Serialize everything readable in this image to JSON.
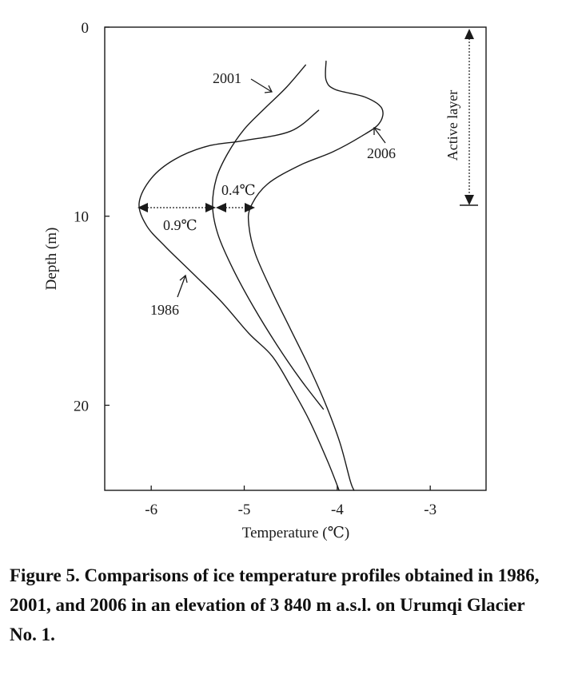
{
  "chart_data": {
    "type": "line",
    "title": "",
    "xlabel": "Temperature (℃)",
    "ylabel": "Depth (m)",
    "xlim": [
      -6.5,
      -2.4
    ],
    "ylim": [
      0,
      24.5
    ],
    "y_inverted": true,
    "x_ticks": [
      -6,
      -5,
      -4,
      -3
    ],
    "x_tick_labels": [
      "-6",
      "-5",
      "-4",
      "-3"
    ],
    "y_ticks": [
      0,
      10,
      20
    ],
    "y_tick_labels": [
      "0",
      "10",
      "20"
    ],
    "grid": false,
    "legend": "none",
    "series": [
      {
        "name": "1986",
        "points": [
          [
            -4.2,
            4.4
          ],
          [
            -4.5,
            5.5
          ],
          [
            -5.0,
            6.0
          ],
          [
            -5.4,
            6.3
          ],
          [
            -5.75,
            7.0
          ],
          [
            -6.0,
            8.0
          ],
          [
            -6.13,
            9.3
          ],
          [
            -6.05,
            10.5
          ],
          [
            -5.85,
            11.6
          ],
          [
            -5.6,
            12.8
          ],
          [
            -5.25,
            14.5
          ],
          [
            -4.95,
            16.2
          ],
          [
            -4.7,
            17.4
          ],
          [
            -4.5,
            19.0
          ],
          [
            -4.3,
            20.8
          ],
          [
            -4.1,
            23.0
          ],
          [
            -3.98,
            24.5
          ]
        ]
      },
      {
        "name": "2001",
        "points": [
          [
            -4.34,
            2.0
          ],
          [
            -4.55,
            3.2
          ],
          [
            -4.78,
            4.3
          ],
          [
            -5.0,
            5.4
          ],
          [
            -5.18,
            6.7
          ],
          [
            -5.3,
            8.0
          ],
          [
            -5.34,
            9.5
          ],
          [
            -5.28,
            11.0
          ],
          [
            -5.12,
            12.8
          ],
          [
            -4.9,
            14.8
          ],
          [
            -4.65,
            16.8
          ],
          [
            -4.4,
            18.6
          ],
          [
            -4.15,
            20.2
          ]
        ]
      },
      {
        "name": "2006",
        "points": [
          [
            -4.12,
            1.8
          ],
          [
            -4.12,
            2.8
          ],
          [
            -4.02,
            3.3
          ],
          [
            -3.7,
            3.7
          ],
          [
            -3.52,
            4.3
          ],
          [
            -3.55,
            5.1
          ],
          [
            -3.75,
            5.8
          ],
          [
            -4.05,
            6.6
          ],
          [
            -4.4,
            7.3
          ],
          [
            -4.75,
            8.3
          ],
          [
            -4.93,
            9.5
          ],
          [
            -4.95,
            10.5
          ],
          [
            -4.88,
            12.0
          ],
          [
            -4.7,
            14.0
          ],
          [
            -4.5,
            16.0
          ],
          [
            -4.3,
            18.0
          ],
          [
            -4.12,
            20.0
          ],
          [
            -3.97,
            22.0
          ],
          [
            -3.86,
            24.0
          ],
          [
            -3.82,
            24.5
          ]
        ]
      }
    ],
    "annotations": {
      "label_1986": "1986",
      "label_2001": "2001",
      "label_2006": "2006",
      "diff_1986_2001": "0.9℃",
      "diff_2001_2006": "0.4℃",
      "active_layer": "Active layer"
    }
  },
  "caption": "Figure 5. Comparisons of ice temperature profiles obtained in 1986, 2001, and 2006 in an elevation of 3 840 m a.s.l. on Urumqi Glacier No. 1."
}
